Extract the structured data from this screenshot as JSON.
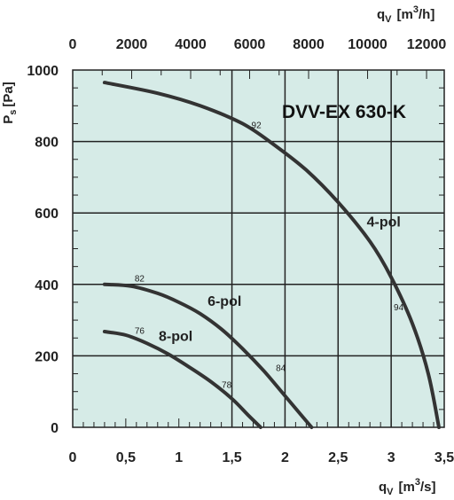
{
  "chart_data": {
    "type": "line",
    "title": "DVV-EX 630-K",
    "plot_background": "#d6ebe7",
    "line_color": "#333333",
    "ylabel": {
      "main": "P",
      "sub": "s",
      "unit": "[Pa]"
    },
    "xlabel": {
      "main": "q",
      "sub": "V",
      "unit_pre": "[m",
      "sup": "3",
      "unit_post": "/s]"
    },
    "x2label": {
      "main": "q",
      "sub": "V",
      "unit_pre": "[m",
      "sup": "3",
      "unit_post": "/h]"
    },
    "xlim": [
      0,
      3.5
    ],
    "ylim": [
      0,
      1000
    ],
    "x_ticks": [
      {
        "value": 0,
        "label": "0"
      },
      {
        "value": 0.5,
        "label": "0,5"
      },
      {
        "value": 1,
        "label": "1"
      },
      {
        "value": 1.5,
        "label": "1,5"
      },
      {
        "value": 2,
        "label": "2"
      },
      {
        "value": 2.5,
        "label": "2,5"
      },
      {
        "value": 3,
        "label": "3"
      },
      {
        "value": 3.5,
        "label": "3,5"
      }
    ],
    "y_ticks": [
      {
        "value": 0,
        "label": "0"
      },
      {
        "value": 200,
        "label": "200"
      },
      {
        "value": 400,
        "label": "400"
      },
      {
        "value": 600,
        "label": "600"
      },
      {
        "value": 800,
        "label": "800"
      },
      {
        "value": 1000,
        "label": "1000"
      }
    ],
    "x2_ticks": [
      {
        "value": 0,
        "label": "0"
      },
      {
        "value": 2000,
        "label": "2000"
      },
      {
        "value": 4000,
        "label": "4000"
      },
      {
        "value": 6000,
        "label": "6000"
      },
      {
        "value": 8000,
        "label": "8000"
      },
      {
        "value": 10000,
        "label": "10000"
      },
      {
        "value": 12000,
        "label": "12000"
      }
    ],
    "grid": {
      "x_major": [
        1.5,
        2,
        2.5,
        3
      ],
      "y_major": [
        200,
        400,
        600,
        800
      ],
      "minor_ticks": true
    },
    "series": [
      {
        "name": "4-pol",
        "label_at": [
          2.93,
          562
        ],
        "points": [
          [
            0.3,
            965
          ],
          [
            0.8,
            935
          ],
          [
            1.2,
            900
          ],
          [
            1.6,
            850
          ],
          [
            1.9,
            790
          ],
          [
            2.2,
            720
          ],
          [
            2.5,
            630
          ],
          [
            2.8,
            520
          ],
          [
            3.0,
            420
          ],
          [
            3.2,
            290
          ],
          [
            3.35,
            150
          ],
          [
            3.45,
            0
          ]
        ]
      },
      {
        "name": "6-pol",
        "label_at": [
          1.43,
          340
        ],
        "points": [
          [
            0.3,
            400
          ],
          [
            0.55,
            395
          ],
          [
            0.8,
            375
          ],
          [
            1.0,
            350
          ],
          [
            1.2,
            318
          ],
          [
            1.4,
            275
          ],
          [
            1.6,
            220
          ],
          [
            1.8,
            158
          ],
          [
            2.0,
            88
          ],
          [
            2.15,
            35
          ],
          [
            2.25,
            0
          ]
        ]
      },
      {
        "name": "8-pol",
        "label_at": [
          0.97,
          242
        ],
        "points": [
          [
            0.3,
            268
          ],
          [
            0.5,
            258
          ],
          [
            0.7,
            235
          ],
          [
            0.9,
            205
          ],
          [
            1.1,
            168
          ],
          [
            1.3,
            128
          ],
          [
            1.5,
            80
          ],
          [
            1.65,
            35
          ],
          [
            1.77,
            0
          ]
        ]
      }
    ],
    "efficiency_labels": [
      {
        "text": "92",
        "at": [
          1.73,
          838
        ]
      },
      {
        "text": "94",
        "at": [
          3.07,
          328
        ]
      },
      {
        "text": "82",
        "at": [
          0.63,
          408
        ]
      },
      {
        "text": "84",
        "at": [
          1.96,
          158
        ]
      },
      {
        "text": "76",
        "at": [
          0.63,
          262
        ]
      },
      {
        "text": "78",
        "at": [
          1.45,
          110
        ]
      }
    ]
  }
}
